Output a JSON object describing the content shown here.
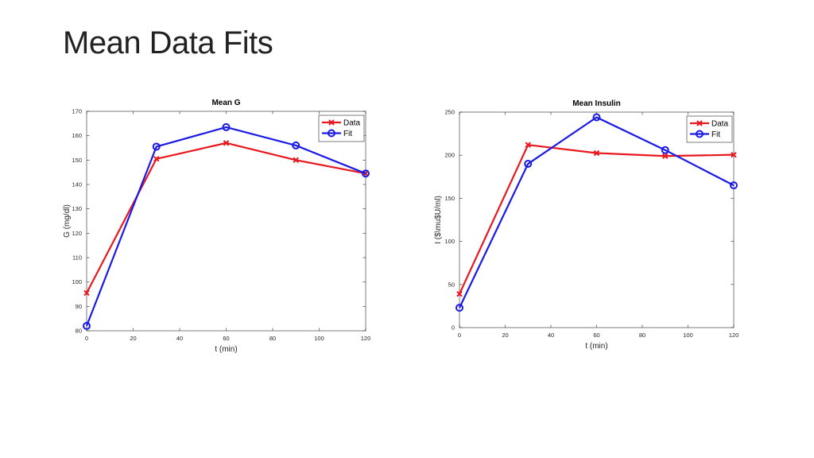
{
  "slide": {
    "title": "Mean Data Fits"
  },
  "chart_data": [
    {
      "type": "line",
      "title": "Mean G",
      "xlabel": "t (min)",
      "ylabel": "G (mg/dl)",
      "xlim": [
        0,
        120
      ],
      "ylim": [
        80,
        170
      ],
      "xticks": [
        0,
        20,
        40,
        60,
        80,
        100,
        120
      ],
      "yticks": [
        80,
        90,
        100,
        110,
        120,
        130,
        140,
        150,
        160,
        170
      ],
      "grid": false,
      "legend": "top-right",
      "x": [
        0,
        30,
        60,
        90,
        120
      ],
      "series": [
        {
          "name": "Data",
          "values": [
            95.5,
            150.5,
            157,
            150,
            144.5
          ],
          "color": "#e8181e",
          "marker": "x"
        },
        {
          "name": "Fit",
          "values": [
            82,
            155.5,
            163.5,
            156,
            144.5
          ],
          "color": "#1a1ae6",
          "marker": "o"
        }
      ]
    },
    {
      "type": "line",
      "title": "Mean Insulin",
      "xlabel": "t (min)",
      "ylabel": "I ($\\mu$U/ml)",
      "xlim": [
        0,
        120
      ],
      "ylim": [
        0,
        250
      ],
      "xticks": [
        0,
        20,
        40,
        60,
        80,
        100,
        120
      ],
      "yticks": [
        0,
        50,
        100,
        150,
        200,
        250
      ],
      "grid": false,
      "legend": "top-right",
      "x": [
        0,
        30,
        60,
        90,
        120
      ],
      "series": [
        {
          "name": "Data",
          "values": [
            39,
            212,
            202.5,
            199,
            200.5
          ],
          "color": "#e8181e",
          "marker": "x"
        },
        {
          "name": "Fit",
          "values": [
            23,
            190,
            244,
            206,
            165
          ],
          "color": "#1a1ae6",
          "marker": "o"
        }
      ]
    }
  ]
}
